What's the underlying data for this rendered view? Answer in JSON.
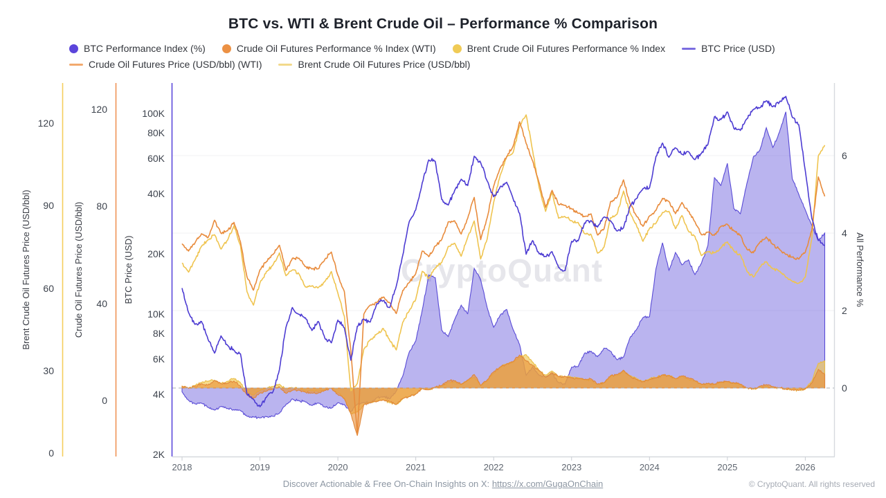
{
  "title": "BTC vs. WTI & Brent Crude Oil – Performance % Comparison",
  "watermark": "CryptoQuant",
  "legend": {
    "items": [
      {
        "label": "BTC Performance Index (%)",
        "marker": "dot",
        "color": "#5B45DB"
      },
      {
        "label": "Crude Oil Futures Performance % Index (WTI)",
        "marker": "dot",
        "color": "#EC9144"
      },
      {
        "label": "Brent Crude Oil Futures Performance % Index",
        "marker": "dot",
        "color": "#F0CB56"
      },
      {
        "label": "BTC Price (USD)",
        "marker": "line",
        "color": "#7A6CE0"
      },
      {
        "label": "Crude Oil Futures Price (USD/bbl) (WTI)",
        "marker": "line",
        "color": "#F2A96E"
      },
      {
        "label": "Brent Crude Oil Futures Price (USD/bbl)",
        "marker": "line",
        "color": "#F2D98B"
      }
    ]
  },
  "axes": {
    "brent": {
      "title": "Brent Crude Oil Futures Price (USD/bbl)",
      "color": "#F5CE5B",
      "ticks": [
        0,
        30,
        60,
        90,
        120
      ]
    },
    "wti": {
      "title": "Crude Oil Futures Price (USD/bbl)",
      "color": "#EF9255",
      "ticks": [
        0,
        40,
        80,
        120
      ]
    },
    "btc": {
      "title": "BTC Price (USD)",
      "color": "#5B49DB",
      "tick_values": [
        2,
        4,
        6,
        8,
        10,
        20,
        40,
        60,
        80,
        100
      ],
      "tick_labels": [
        "2K",
        "4K",
        "6K",
        "8K",
        "10K",
        "20K",
        "40K",
        "60K",
        "80K",
        "100K"
      ]
    },
    "perf": {
      "title": "All Performance %",
      "color": "#cfd3d9",
      "ticks": [
        0,
        2,
        4,
        6
      ],
      "gridlines": [
        2,
        4,
        6
      ],
      "zero_line": 0
    },
    "x": {
      "ticks": [
        2018,
        2019,
        2020,
        2021,
        2022,
        2023,
        2024,
        2025,
        2026
      ]
    }
  },
  "chart_data": {
    "type": "line",
    "x_start": 2018.0,
    "x_step": "monthly",
    "x_end": 2026.25,
    "grid": "horizontal-faint",
    "legend_position": "top",
    "series": [
      {
        "name": "BTC Price (USD)",
        "axis": "btc",
        "unit": "K USD",
        "style": "line",
        "color": "#4C3BD2",
        "values": [
          13.5,
          10.2,
          8.9,
          9.2,
          7.5,
          6.4,
          7.8,
          7.0,
          6.6,
          6.35,
          4.0,
          3.75,
          3.46,
          3.85,
          4.1,
          5.3,
          8.6,
          10.8,
          10.0,
          9.6,
          8.3,
          9.2,
          7.6,
          7.2,
          9.35,
          8.55,
          5.9,
          8.7,
          9.45,
          9.15,
          11.3,
          11.7,
          10.8,
          13.8,
          19.7,
          29.0,
          33.1,
          45.2,
          58.8,
          57.8,
          37.3,
          35.0,
          41.5,
          47.1,
          43.8,
          61.3,
          57.0,
          46.2,
          38.5,
          43.2,
          45.5,
          37.6,
          31.8,
          19.9,
          23.3,
          20.0,
          19.4,
          20.5,
          17.1,
          16.5,
          23.1,
          23.2,
          28.5,
          29.3,
          27.2,
          30.5,
          29.2,
          26.0,
          27.0,
          34.5,
          37.7,
          42.3,
          42.6,
          61.2,
          71.3,
          60.6,
          67.5,
          62.7,
          64.6,
          59.0,
          63.3,
          70.2,
          96.4,
          93.4,
          102.0,
          84.4,
          82.5,
          94.2,
          104.6,
          107.1,
          115.8,
          108.2,
          114.0,
          122.0,
          96.0,
          88.0,
          52.0,
          30.0,
          23.5,
          22.0
        ]
      },
      {
        "name": "Crude Oil Futures Price (USD/bbl) (WTI)",
        "axis": "wti",
        "unit": "USD/bbl",
        "style": "line",
        "color": "#E88B3C",
        "values": [
          64.5,
          61.5,
          64.9,
          68.6,
          67.0,
          74.2,
          68.8,
          69.8,
          73.3,
          65.3,
          50.9,
          45.4,
          53.8,
          57.2,
          60.1,
          63.9,
          53.5,
          58.5,
          58.6,
          55.1,
          54.1,
          54.2,
          58.1,
          61.1,
          51.6,
          44.8,
          20.5,
          -14.0,
          35.5,
          39.3,
          40.3,
          42.6,
          40.2,
          35.8,
          45.3,
          48.5,
          52.2,
          61.5,
          59.2,
          63.6,
          66.3,
          73.5,
          73.9,
          68.5,
          75.0,
          83.6,
          66.2,
          75.2,
          88.2,
          95.7,
          100.3,
          104.7,
          114.7,
          105.8,
          98.6,
          89.6,
          79.5,
          86.5,
          80.6,
          80.3,
          78.9,
          77.1,
          75.7,
          76.8,
          68.1,
          70.6,
          81.8,
          83.6,
          90.8,
          81.0,
          75.9,
          71.7,
          75.9,
          78.3,
          83.2,
          81.9,
          76.9,
          81.5,
          77.9,
          73.6,
          68.2,
          69.3,
          68.0,
          71.7,
          72.5,
          69.8,
          68.1,
          62.3,
          60.8,
          65.1,
          67.3,
          64.2,
          62.4,
          60.1,
          59.0,
          58.2,
          61.0,
          70.0,
          92.0,
          84.0
        ]
      },
      {
        "name": "Brent Crude Oil Futures Price (USD/bbl)",
        "axis": "brent",
        "unit": "USD/bbl",
        "style": "line",
        "color": "#EFC44F",
        "values": [
          69.1,
          65.8,
          70.3,
          75.2,
          77.6,
          79.4,
          74.2,
          77.4,
          82.7,
          75.5,
          58.7,
          53.8,
          61.9,
          66.0,
          68.4,
          72.8,
          64.5,
          66.6,
          65.2,
          60.4,
          60.8,
          60.2,
          62.4,
          66.0,
          58.2,
          49.7,
          22.7,
          25.3,
          37.8,
          41.2,
          43.3,
          45.3,
          40.9,
          37.5,
          47.6,
          51.8,
          55.9,
          66.1,
          63.5,
          67.3,
          69.3,
          75.1,
          76.3,
          71.6,
          78.5,
          84.4,
          70.6,
          77.8,
          91.2,
          101.0,
          107.9,
          109.3,
          119.0,
          123.0,
          110.0,
          96.5,
          87.9,
          94.8,
          85.4,
          85.9,
          84.5,
          83.9,
          79.8,
          79.5,
          72.7,
          74.9,
          85.6,
          86.9,
          95.3,
          87.4,
          82.8,
          77.0,
          81.7,
          83.6,
          87.5,
          87.9,
          81.6,
          86.4,
          80.7,
          78.8,
          71.8,
          73.2,
          72.9,
          74.6,
          76.8,
          73.6,
          72.0,
          66.2,
          64.0,
          67.6,
          69.6,
          67.0,
          66.1,
          63.9,
          62.5,
          61.8,
          64.0,
          78.0,
          108.0,
          112.0
        ]
      },
      {
        "name": "BTC Performance Index (%)",
        "axis": "perf",
        "unit": "index",
        "style": "area",
        "color": "#584AD6",
        "fill": "rgba(101,88,220,0.45)",
        "values": [
          -0.1,
          -0.32,
          -0.41,
          -0.39,
          -0.5,
          -0.57,
          -0.48,
          -0.53,
          -0.56,
          -0.58,
          -0.73,
          -0.75,
          -0.77,
          -0.74,
          -0.73,
          -0.65,
          -0.43,
          -0.28,
          -0.33,
          -0.36,
          -0.45,
          -0.39,
          -0.49,
          -0.52,
          -0.38,
          -0.43,
          -0.61,
          -0.42,
          -0.37,
          -0.39,
          -0.25,
          -0.22,
          -0.28,
          -0.08,
          0.31,
          0.93,
          1.21,
          2.01,
          2.92,
          2.85,
          1.49,
          1.33,
          1.77,
          2.14,
          1.92,
          3.09,
          2.8,
          2.08,
          1.57,
          1.88,
          2.03,
          1.51,
          1.12,
          0.33,
          0.55,
          0.33,
          0.29,
          0.37,
          0.14,
          0.1,
          0.54,
          0.55,
          0.9,
          0.95,
          0.81,
          1.03,
          0.95,
          0.73,
          0.8,
          1.3,
          1.51,
          1.82,
          1.84,
          3.08,
          3.75,
          3.04,
          3.5,
          3.18,
          3.31,
          2.93,
          3.22,
          3.68,
          5.43,
          5.23,
          5.8,
          4.63,
          4.5,
          5.28,
          5.97,
          6.14,
          6.72,
          6.21,
          6.6,
          7.13,
          5.4,
          5.0,
          4.6,
          4.2,
          3.8,
          4.0
        ]
      },
      {
        "name": "Crude Oil Futures Performance % Index (WTI)",
        "axis": "perf",
        "unit": "index",
        "style": "area",
        "color": "#E0873A",
        "fill": "rgba(232,146,56,0.62)",
        "values": [
          0.04,
          -0.01,
          0.05,
          0.11,
          0.08,
          0.2,
          0.11,
          0.13,
          0.18,
          0.05,
          -0.18,
          -0.27,
          -0.13,
          -0.08,
          -0.03,
          0.03,
          -0.14,
          -0.06,
          -0.05,
          -0.11,
          -0.13,
          -0.13,
          -0.06,
          -0.01,
          -0.17,
          -0.28,
          -0.67,
          -1.23,
          -0.43,
          -0.37,
          -0.35,
          -0.31,
          -0.35,
          -0.42,
          -0.27,
          -0.22,
          -0.16,
          -0.01,
          -0.05,
          0.03,
          0.07,
          0.19,
          0.19,
          0.1,
          0.21,
          0.35,
          0.07,
          0.21,
          0.42,
          0.54,
          0.62,
          0.69,
          0.85,
          0.71,
          0.59,
          0.45,
          0.28,
          0.4,
          0.3,
          0.3,
          0.27,
          0.24,
          0.22,
          0.24,
          0.1,
          0.14,
          0.32,
          0.35,
          0.46,
          0.31,
          0.22,
          0.16,
          0.22,
          0.26,
          0.34,
          0.32,
          0.24,
          0.31,
          0.26,
          0.19,
          0.1,
          0.12,
          0.1,
          0.16,
          0.17,
          0.13,
          0.1,
          0.0,
          -0.02,
          0.05,
          0.09,
          0.04,
          0.01,
          -0.03,
          -0.05,
          -0.06,
          -0.02,
          0.13,
          0.48,
          0.35
        ]
      },
      {
        "name": "Brent Crude Oil Futures Performance % Index",
        "axis": "perf",
        "unit": "index",
        "style": "area",
        "color": "#E9BD45",
        "fill": "rgba(240,199,74,0.62)",
        "values": [
          0.05,
          0.0,
          0.07,
          0.14,
          0.18,
          0.2,
          0.12,
          0.17,
          0.25,
          0.14,
          -0.11,
          -0.18,
          -0.06,
          0.0,
          0.04,
          0.1,
          -0.02,
          0.01,
          -0.01,
          -0.08,
          -0.08,
          -0.09,
          -0.05,
          0.0,
          -0.12,
          -0.25,
          -0.66,
          -0.62,
          -0.43,
          -0.38,
          -0.34,
          -0.31,
          -0.38,
          -0.43,
          -0.28,
          -0.22,
          -0.15,
          0.0,
          -0.04,
          0.02,
          0.05,
          0.14,
          0.16,
          0.08,
          0.19,
          0.28,
          0.07,
          0.18,
          0.38,
          0.53,
          0.63,
          0.66,
          0.8,
          0.86,
          0.67,
          0.46,
          0.33,
          0.44,
          0.29,
          0.3,
          0.28,
          0.27,
          0.21,
          0.2,
          0.1,
          0.13,
          0.3,
          0.32,
          0.44,
          0.32,
          0.25,
          0.17,
          0.24,
          0.27,
          0.33,
          0.33,
          0.24,
          0.31,
          0.22,
          0.19,
          0.09,
          0.11,
          0.1,
          0.13,
          0.16,
          0.12,
          0.09,
          0.0,
          -0.03,
          0.02,
          0.05,
          0.02,
          0.0,
          -0.03,
          -0.05,
          -0.06,
          -0.03,
          0.18,
          0.64,
          0.7
        ]
      }
    ]
  },
  "footer": {
    "promo": "Discover Actionable & Free On-Chain Insights on X:",
    "link": "https://x.com/GugaOnChain",
    "copyright": "© CryptoQuant. All rights reserved"
  }
}
